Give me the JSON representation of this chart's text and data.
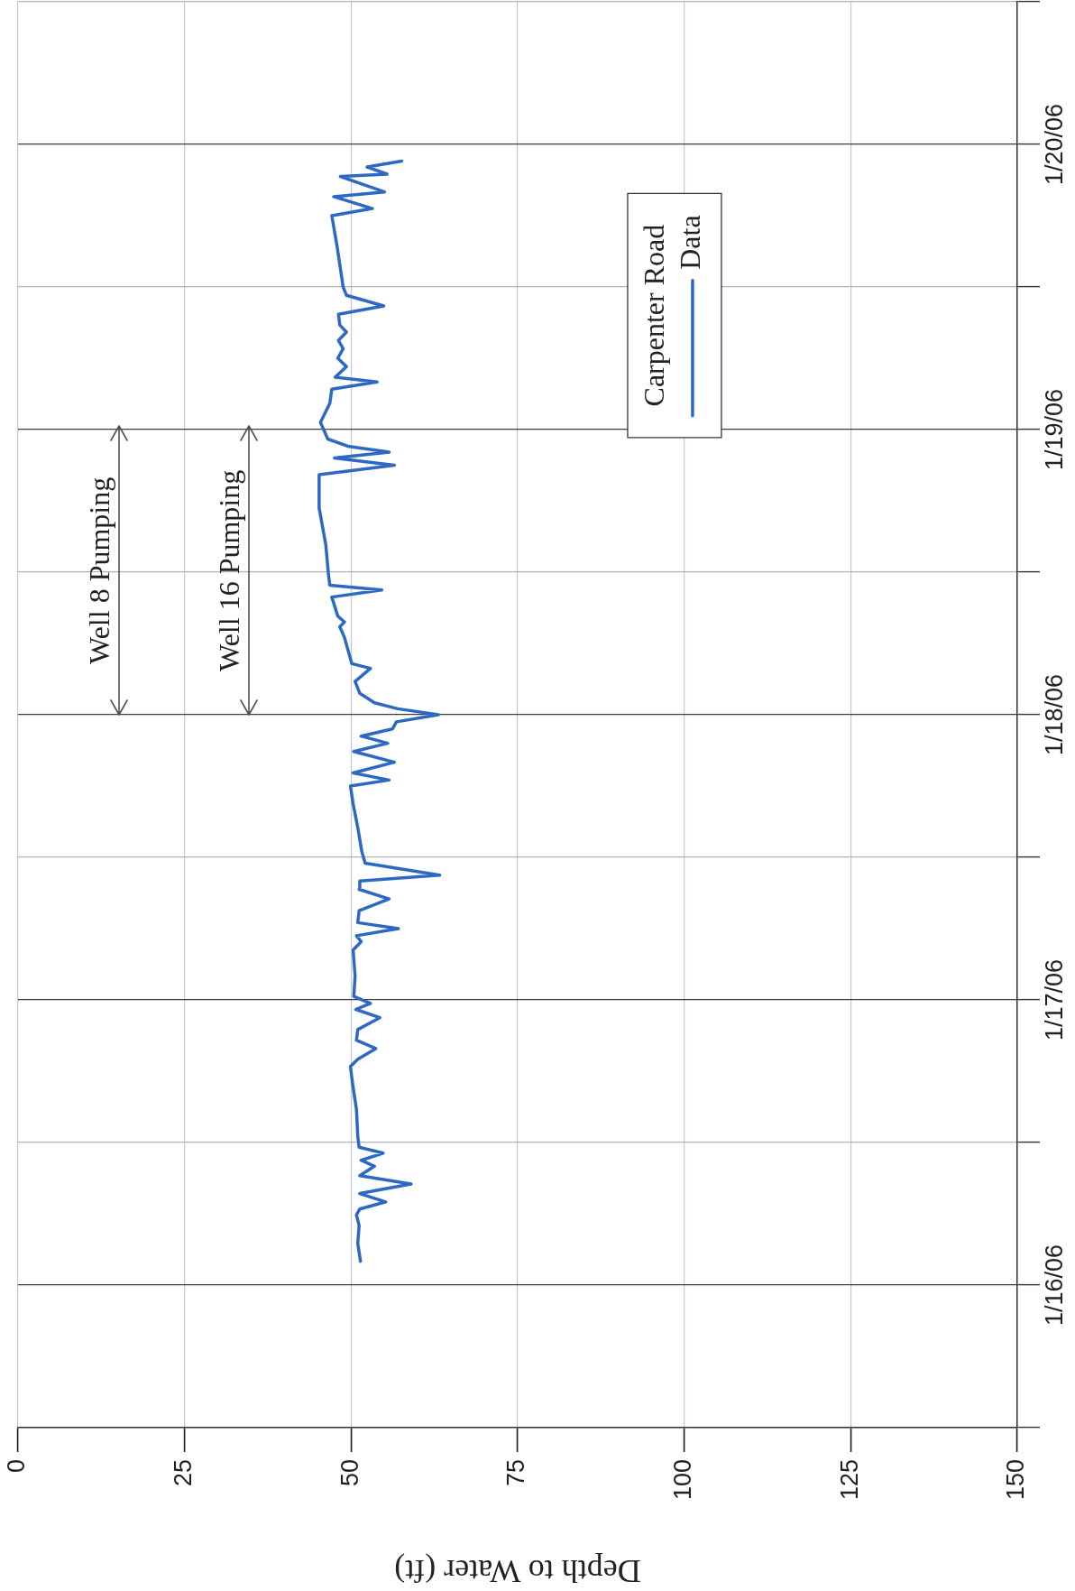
{
  "chart_data": {
    "type": "line",
    "orientation": "horizontal",
    "x": [
      "--01-16T02:00",
      "--01-16T03:30",
      "--01-16T05:00",
      "--01-16T05:54",
      "--01-16T06:24",
      "--01-16T07:00",
      "--01-16T07:42",
      "--01-16T08:30",
      "--01-16T09:12",
      "--01-16T10:00",
      "--01-16T10:30",
      "--01-16T11:06",
      "--01-16T11:36",
      "--01-16T12:30",
      "--01-16T14:48",
      "--01-16T17:00",
      "--01-16T18:24",
      "--01-16T19:00",
      "--01-16T19:54",
      "--01-16T20:36",
      "--01-16T21:30",
      "--01-16T22:30",
      "--01-16T23:12",
      "--01-16T23:42",
      "--01-17T00:18",
      "--01-17T02:00",
      "--01-17T04:12",
      "--01-17T04:54",
      "--01-17T05:24",
      "--01-17T06:00",
      "--01-17T06:30",
      "--01-17T07:30",
      "--01-17T08:30",
      "--01-17T09:18",
      "--01-17T10:00",
      "--01-17T10:30",
      "--01-17T11:30",
      "--01-17T12:30",
      "--01-17T14:30",
      "--01-17T16:30",
      "--01-17T18:00",
      "--01-17T18:30",
      "--01-17T19:06",
      "--01-17T20:00",
      "--01-17T20:54",
      "--01-17T21:36",
      "--01-17T22:12",
      "--01-17T22:48",
      "--01-17T23:24",
      "--01-18T00:00",
      "--01-18T00:30",
      "--01-18T01:00",
      "--01-18T01:48",
      "--01-18T02:48",
      "--01-18T03:54",
      "--01-18T04:18",
      "--01-18T06:30",
      "--01-18T07:24",
      "--01-18T07:48",
      "--01-18T08:18",
      "--01-18T09:54",
      "--01-18T10:30",
      "--01-18T10:54",
      "--01-18T11:48",
      "--01-18T14:18",
      "--01-18T17:24",
      "--01-18T20:12",
      "--01-18T21:00",
      "--01-18T21:36",
      "--01-18T22:06",
      "--01-18T22:36",
      "--01-18T23:12",
      "--01-19T00:36",
      "--01-19T02:12",
      "--01-19T03:24",
      "--01-19T04:00",
      "--01-19T04:24",
      "--01-19T05:18",
      "--01-19T06:00",
      "--01-19T06:48",
      "--01-19T07:30",
      "--01-19T08:12",
      "--01-19T08:48",
      "--01-19T09:42",
      "--01-19T10:24",
      "--01-19T11:18",
      "--01-19T12:00",
      "--01-19T15:24",
      "--01-19T18:00",
      "--01-19T18:36",
      "--01-19T19:36",
      "--01-19T20:00",
      "--01-19T21:18",
      "--01-19T21:30",
      "--01-19T22:06",
      "--01-19T22:36"
    ],
    "series": [
      {
        "name": "Data",
        "color": "#2d69c3",
        "values": [
          51.4,
          51.0,
          51.2,
          50.8,
          51.3,
          55.2,
          51.3,
          59.0,
          51.3,
          53.5,
          51.5,
          54.8,
          51.2,
          51.0,
          50.8,
          50.2,
          49.9,
          51.0,
          53.7,
          50.8,
          51.0,
          54.3,
          50.7,
          52.9,
          50.4,
          50.6,
          50.3,
          51.5,
          50.8,
          57.1,
          51.0,
          51.2,
          55.7,
          51.2,
          51.3,
          63.3,
          52.1,
          51.6,
          51.0,
          50.3,
          49.9,
          55.7,
          50.3,
          56.5,
          50.4,
          55.5,
          51.5,
          56.2,
          56.8,
          63.1,
          57.0,
          53.5,
          51.3,
          50.6,
          52.9,
          50.1,
          49.0,
          48.3,
          49.0,
          48.0,
          47.1,
          54.6,
          46.8,
          46.6,
          46.2,
          45.2,
          45.2,
          56.5,
          47.5,
          55.7,
          49.5,
          46.5,
          45.4,
          46.8,
          47.1,
          53.9,
          47.6,
          49.3,
          48.0,
          48.8,
          48.1,
          49.3,
          48.3,
          48.1,
          54.9,
          49.3,
          48.8,
          47.9,
          47.1,
          53.2,
          47.4,
          55.0,
          48.4,
          55.4,
          52.4,
          57.6
        ]
      }
    ],
    "xlim": [
      0,
      150
    ],
    "xticks": [
      0,
      25,
      50,
      75,
      100,
      125,
      150
    ],
    "ylim": [
      "--01-15T12:00",
      "--01-20T12:00"
    ],
    "yticks": [
      {
        "value": "--01-15T12:00",
        "label": null
      },
      {
        "value": "--01-16",
        "label": "1/16/06"
      },
      {
        "value": "--01-16T12:00",
        "label": null
      },
      {
        "value": "--01-17",
        "label": "1/17/06"
      },
      {
        "value": "--01-17T12:00",
        "label": null
      },
      {
        "value": "--01-18",
        "label": "1/18/06"
      },
      {
        "value": "--01-18T12:00",
        "label": null
      },
      {
        "value": "--01-19",
        "label": "1/19/06"
      },
      {
        "value": "--01-19T12:00",
        "label": null
      },
      {
        "value": "--01-20",
        "label": "1/20/06"
      },
      {
        "value": "--01-20T12:00",
        "label": null
      }
    ],
    "xlabel": "Depth to Water (ft)",
    "legend_title": "Carpenter Road",
    "legend": "top",
    "grid": true,
    "annotations": [
      "Well 8 Pumping",
      "Well 16 Pumping"
    ]
  }
}
